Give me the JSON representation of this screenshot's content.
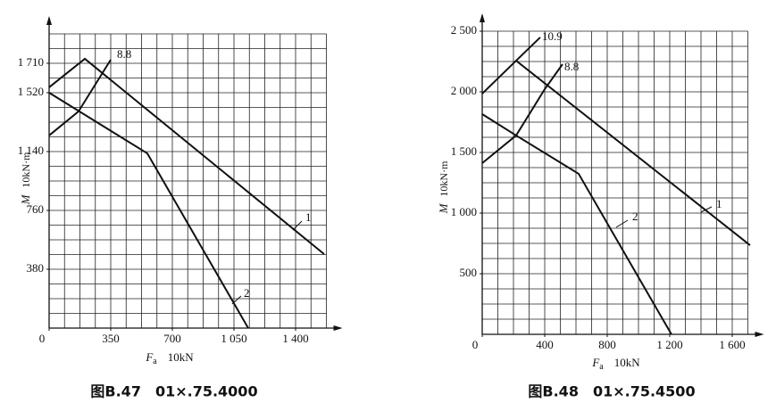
{
  "chart_data": [
    {
      "type": "line",
      "caption": "图B.47　01×.75.4000",
      "ylabel_symbol": "M",
      "ylabel_unit": "10kN·m",
      "xlabel_symbol": "F",
      "xlabel_sub": "a",
      "xlabel_unit": "10kN",
      "xlim": [
        0,
        1575
      ],
      "ylim": [
        0,
        1900
      ],
      "grid": true,
      "xticks": [
        0,
        350,
        700,
        {
          "value": 1050,
          "label": "1 050"
        },
        {
          "value": 1400,
          "label": "1 400"
        }
      ],
      "yticks": [
        380,
        760,
        {
          "value": 1140,
          "label": "1 140"
        },
        {
          "value": 1520,
          "label": "1 520"
        },
        {
          "value": 1710,
          "label": "1 710"
        }
      ],
      "series": [
        {
          "name": "1",
          "color": "#111111",
          "x": [
            0,
            203,
            1562
          ],
          "values": [
            1555,
            1739,
            478
          ]
        },
        {
          "name": "2",
          "color": "#111111",
          "x": [
            0,
            558,
            1131
          ],
          "values": [
            1520,
            1128,
            0
          ]
        },
        {
          "name": "8.8",
          "color": "#111111",
          "x": [
            0,
            167,
            350
          ],
          "values": [
            1244,
            1399,
            1733
          ]
        }
      ]
    },
    {
      "type": "line",
      "caption": "图B.48　01×.75.4500",
      "ylabel_symbol": "M",
      "ylabel_unit": "10kN·m",
      "xlabel_symbol": "F",
      "xlabel_sub": "a",
      "xlabel_unit": "10kN",
      "xlim": [
        0,
        1700
      ],
      "ylim": [
        0,
        2500
      ],
      "grid": true,
      "xticks": [
        0,
        400,
        800,
        {
          "value": 1200,
          "label": "1 200"
        },
        {
          "value": 1600,
          "label": "1 600"
        }
      ],
      "yticks": [
        500,
        {
          "value": 1000,
          "label": "1 000"
        },
        {
          "value": 1500,
          "label": "1 500"
        },
        {
          "value": 2000,
          "label": "2 000"
        },
        {
          "value": 2500,
          "label": "2 500"
        }
      ],
      "series": [
        {
          "name": "1",
          "color": "#111111",
          "x": [
            0,
            217,
            1714
          ],
          "values": [
            1985,
            2257,
            735
          ]
        },
        {
          "name": "2",
          "color": "#111111",
          "x": [
            0,
            217,
            617,
            1211
          ],
          "values": [
            1816,
            1640,
            1324,
            0
          ]
        },
        {
          "name": "8.8",
          "color": "#111111",
          "x": [
            0,
            217,
            400,
            514
          ],
          "values": [
            1412,
            1640,
            2022,
            2228
          ]
        },
        {
          "name": "10.9",
          "color": "#111111",
          "x": [
            217,
            371
          ],
          "values": [
            2257,
            2449
          ]
        }
      ]
    }
  ]
}
